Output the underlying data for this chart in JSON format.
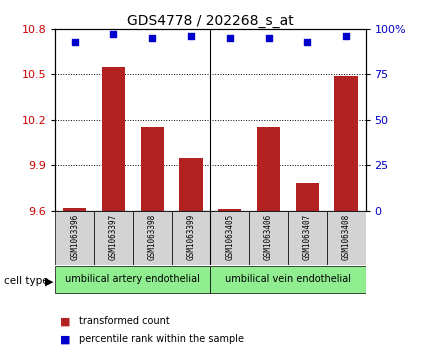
{
  "title": "GDS4778 / 202268_s_at",
  "samples": [
    "GSM1063396",
    "GSM1063397",
    "GSM1063398",
    "GSM1063399",
    "GSM1063405",
    "GSM1063406",
    "GSM1063407",
    "GSM1063408"
  ],
  "transformed_counts": [
    9.62,
    10.55,
    10.15,
    9.95,
    9.61,
    10.15,
    9.78,
    10.49
  ],
  "percentile_ranks": [
    93,
    97,
    95,
    96,
    95,
    95,
    93,
    96
  ],
  "ylim_left": [
    9.6,
    10.8
  ],
  "yticks_left": [
    9.6,
    9.9,
    10.2,
    10.5,
    10.8
  ],
  "ylim_right": [
    0,
    100
  ],
  "yticks_right": [
    0,
    25,
    50,
    75,
    100
  ],
  "bar_color": "#b22222",
  "dot_color": "#0000cc",
  "bar_width": 0.6,
  "cell_type_labels": [
    "umbilical artery endothelial",
    "umbilical vein endothelial"
  ],
  "cell_type_color": "#90ee90",
  "cell_type_label": "cell type",
  "legend_red": "transformed count",
  "legend_blue": "percentile rank within the sample",
  "background_color": "#ffffff",
  "tick_label_color_left": "#cc0000",
  "tick_label_color_right": "#0000cc",
  "sample_box_color": "#d3d3d3",
  "title_fontsize": 10,
  "tick_fontsize": 8,
  "sample_fontsize": 5.5,
  "cell_type_fontsize": 7,
  "legend_fontsize": 7
}
